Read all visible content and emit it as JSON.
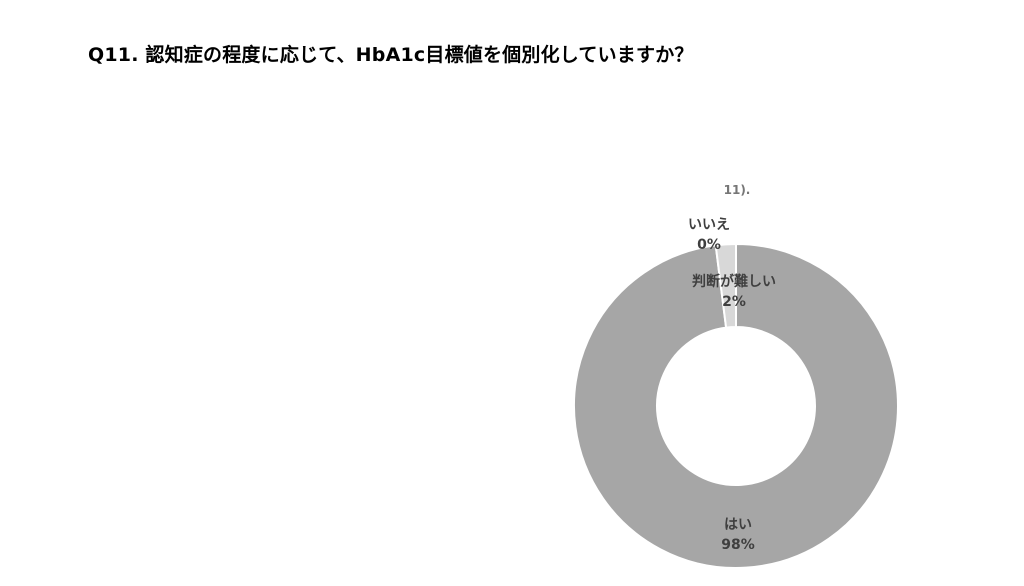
{
  "slide": {
    "title": "Q11. 認知症の程度に応じて、HbA1c目標値を個別化していますか？",
    "background_color": "#ffffff"
  },
  "chart_data": {
    "type": "pie",
    "subtype": "donut",
    "title": "11).",
    "categories": [
      "はい",
      "いいえ",
      "判断が難しい"
    ],
    "values": [
      98,
      0,
      2
    ],
    "unit": "%",
    "legend_position": "none",
    "direction": "clockwise",
    "start_angle_deg": 0,
    "donut_hole_ratio": 0.49,
    "separator_color": "#ffffff",
    "label_color": "#3f3f3f",
    "note_color": "#767676",
    "slices": [
      {
        "label": "はい",
        "value": 98,
        "display": "98%",
        "color": "#a6a6a6"
      },
      {
        "label": "いいえ",
        "value": 0,
        "display": "0%",
        "color": "#c0c0c0"
      },
      {
        "label": "判断が難しい",
        "value": 2,
        "display": "2%",
        "color": "#d8d8d8"
      }
    ]
  }
}
